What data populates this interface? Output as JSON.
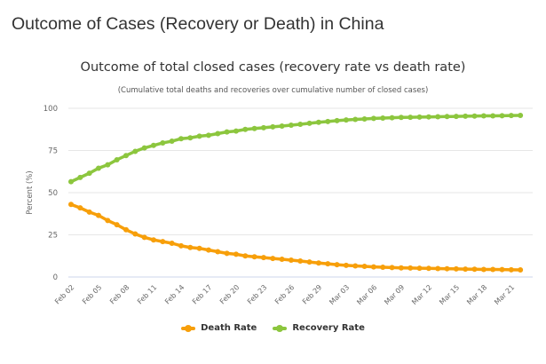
{
  "page": {
    "title": "Outcome of Cases (Recovery or Death) in China"
  },
  "chart_data": {
    "type": "line",
    "title": "Outcome of total closed cases (recovery rate vs death rate)",
    "subtitle": "(Cumulative total deaths and recoveries over cumulative number of closed cases)",
    "xlabel": "",
    "ylabel": "Percent (%)",
    "ylim": [
      0,
      100
    ],
    "yticks": [
      0,
      25,
      50,
      75,
      100
    ],
    "grid": true,
    "legend_position": "bottom-center",
    "x": [
      "Feb 02",
      "Feb 03",
      "Feb 04",
      "Feb 05",
      "Feb 06",
      "Feb 07",
      "Feb 08",
      "Feb 09",
      "Feb 10",
      "Feb 11",
      "Feb 12",
      "Feb 13",
      "Feb 14",
      "Feb 15",
      "Feb 16",
      "Feb 17",
      "Feb 18",
      "Feb 19",
      "Feb 20",
      "Feb 21",
      "Feb 22",
      "Feb 23",
      "Feb 24",
      "Feb 25",
      "Feb 26",
      "Feb 27",
      "Feb 28",
      "Feb 29",
      "Mar 01",
      "Mar 02",
      "Mar 03",
      "Mar 04",
      "Mar 05",
      "Mar 06",
      "Mar 07",
      "Mar 08",
      "Mar 09",
      "Mar 10",
      "Mar 11",
      "Mar 12",
      "Mar 13",
      "Mar 14",
      "Mar 15",
      "Mar 16",
      "Mar 17",
      "Mar 18",
      "Mar 19",
      "Mar 20",
      "Mar 21",
      "Mar 22"
    ],
    "xtick_labels": [
      "Feb 02",
      "Feb 05",
      "Feb 08",
      "Feb 11",
      "Feb 14",
      "Feb 17",
      "Feb 20",
      "Feb 23",
      "Feb 26",
      "Feb 29",
      "Mar 03",
      "Mar 06",
      "Mar 09",
      "Mar 12",
      "Mar 15",
      "Mar 18",
      "Mar 21"
    ],
    "series": [
      {
        "name": "Death Rate",
        "color": "#f79f0a",
        "values": [
          43.0,
          41.0,
          38.5,
          36.5,
          33.5,
          31.0,
          28.0,
          25.5,
          23.5,
          22.0,
          21.0,
          20.0,
          18.5,
          17.5,
          17.0,
          16.0,
          15.0,
          14.0,
          13.5,
          12.5,
          12.0,
          11.5,
          11.0,
          10.5,
          10.0,
          9.5,
          8.9,
          8.3,
          7.8,
          7.3,
          6.9,
          6.6,
          6.3,
          6.0,
          5.8,
          5.6,
          5.4,
          5.3,
          5.2,
          5.1,
          5.0,
          4.9,
          4.8,
          4.7,
          4.6,
          4.5,
          4.5,
          4.4,
          4.3,
          4.2
        ]
      },
      {
        "name": "Recovery Rate",
        "color": "#8cc63e",
        "values": [
          56.5,
          59.0,
          61.5,
          64.5,
          66.5,
          69.5,
          72.0,
          74.5,
          76.5,
          78.0,
          79.5,
          80.5,
          82.0,
          82.5,
          83.5,
          84.0,
          85.0,
          86.0,
          86.5,
          87.5,
          88.0,
          88.5,
          89.0,
          89.5,
          90.0,
          90.5,
          91.1,
          91.7,
          92.2,
          92.7,
          93.1,
          93.4,
          93.7,
          94.0,
          94.2,
          94.4,
          94.6,
          94.7,
          94.8,
          94.9,
          95.0,
          95.1,
          95.2,
          95.3,
          95.4,
          95.5,
          95.5,
          95.6,
          95.7,
          95.8
        ]
      }
    ]
  }
}
